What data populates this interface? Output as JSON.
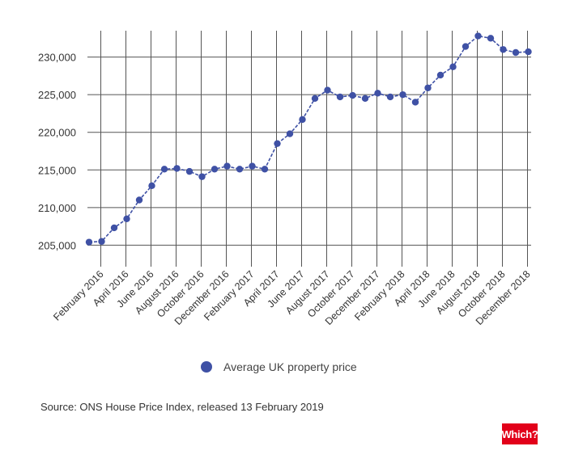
{
  "chart_data": {
    "type": "line",
    "title": "",
    "xlabel": "",
    "ylabel": "",
    "ylim": [
      203000,
      233500
    ],
    "y_ticks": [
      205000,
      210000,
      215000,
      220000,
      225000,
      230000
    ],
    "y_tick_labels": [
      "205,000",
      "210,000",
      "215,000",
      "220,000",
      "225,000",
      "230,000"
    ],
    "x": [
      "January 2016",
      "February 2016",
      "March 2016",
      "April 2016",
      "May 2016",
      "June 2016",
      "July 2016",
      "August 2016",
      "September 2016",
      "October 2016",
      "November 2016",
      "December 2016",
      "January 2017",
      "February 2017",
      "March 2017",
      "April 2017",
      "May 2017",
      "June 2017",
      "July 2017",
      "August 2017",
      "September 2017",
      "October 2017",
      "November 2017",
      "December 2017",
      "January 2018",
      "February 2018",
      "March 2018",
      "April 2018",
      "May 2018",
      "June 2018",
      "July 2018",
      "August 2018",
      "September 2018",
      "October 2018",
      "November 2018",
      "December 2018"
    ],
    "x_tick_labels": [
      "February 2016",
      "April 2016",
      "June 2016",
      "August 2016",
      "October 2016",
      "December 2016",
      "February 2017",
      "April 2017",
      "June 2017",
      "August 2017",
      "October 2017",
      "December 2017",
      "February 2018",
      "April 2018",
      "June 2018",
      "August 2018",
      "October 2018",
      "December 2018"
    ],
    "series": [
      {
        "name": "Average UK property price",
        "color": "#3f51a5",
        "values": [
          205400,
          205500,
          207300,
          208500,
          211000,
          212900,
          215100,
          215200,
          214800,
          214100,
          215100,
          215500,
          215100,
          215500,
          215100,
          218500,
          219800,
          221700,
          224500,
          225600,
          224700,
          224900,
          224500,
          225200,
          224700,
          225000,
          224000,
          225900,
          227600,
          228700,
          231400,
          232800,
          232500,
          231000,
          230600,
          230700
        ]
      }
    ],
    "grid": true,
    "legend_position": "bottom"
  },
  "source_text": "Source: ONS House Price Index, released 13 February 2019",
  "logo_text": "Which?"
}
